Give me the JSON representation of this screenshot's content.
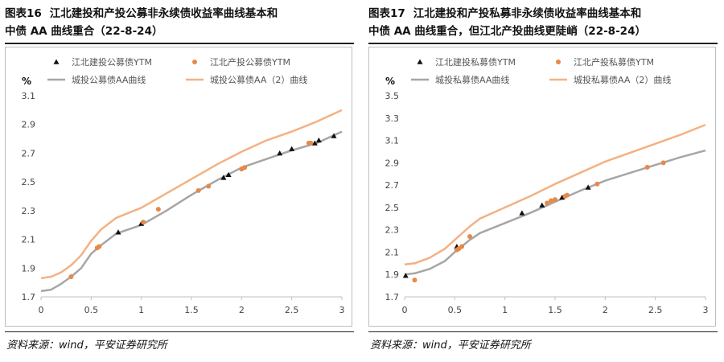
{
  "panels": [
    {
      "fig_num": "图表16",
      "title_line1": "江北建投和产投公募非永续债收益率曲线基本和",
      "title_line2": "中债 AA 曲线重合（22-8-24）",
      "source": "资料来源：wind，平安证券研究所"
    },
    {
      "fig_num": "图表17",
      "title_line1": "江北建投和产投私募非永续债收益率曲线基本和",
      "title_line2": "中债 AA 曲线重合，但江北产投曲线更陡峭（22-8-24）",
      "source": "资料来源：wind，平安证券研究所"
    }
  ],
  "colors": {
    "black": "#111111",
    "orange_marker": "#e7894a",
    "gray_line": "#a6a6a6",
    "orange_line": "#f4b183"
  },
  "chart_data": [
    {
      "type": "line",
      "ylabel": "%",
      "ylim": [
        1.7,
        3.1
      ],
      "yticks": [
        "1.7",
        "1.9",
        "2.1",
        "2.3",
        "2.5",
        "2.7",
        "2.9",
        "3.1"
      ],
      "xlim": [
        0,
        3
      ],
      "xticks": [
        "0",
        "0.5",
        "1",
        "1.5",
        "2",
        "2.5",
        "3"
      ],
      "legend_placement": "top",
      "series": [
        {
          "name": "江北建投公募债YTM",
          "kind": "scatter",
          "marker": "triangle",
          "color": "#111111",
          "points": [
            [
              0.77,
              2.15
            ],
            [
              1.0,
              2.21
            ],
            [
              1.82,
              2.53
            ],
            [
              1.87,
              2.55
            ],
            [
              2.38,
              2.7
            ],
            [
              2.5,
              2.73
            ],
            [
              2.73,
              2.77
            ],
            [
              2.77,
              2.79
            ],
            [
              2.92,
              2.82
            ]
          ]
        },
        {
          "name": "江北产投公募债YTM",
          "kind": "scatter",
          "marker": "circle",
          "color": "#e7894a",
          "points": [
            [
              0.3,
              1.84
            ],
            [
              0.56,
              2.04
            ],
            [
              0.58,
              2.05
            ],
            [
              1.02,
              2.22
            ],
            [
              1.17,
              2.31
            ],
            [
              1.57,
              2.44
            ],
            [
              1.67,
              2.47
            ],
            [
              2.0,
              2.59
            ],
            [
              2.03,
              2.6
            ],
            [
              2.67,
              2.77
            ],
            [
              2.69,
              2.77
            ]
          ]
        },
        {
          "name": "城投公募债AA曲线",
          "kind": "line",
          "color": "#a6a6a6",
          "points": [
            [
              0,
              1.74
            ],
            [
              0.1,
              1.75
            ],
            [
              0.2,
              1.79
            ],
            [
              0.3,
              1.84
            ],
            [
              0.4,
              1.9
            ],
            [
              0.5,
              2.0
            ],
            [
              0.6,
              2.06
            ],
            [
              0.75,
              2.14
            ],
            [
              1.0,
              2.2
            ],
            [
              1.25,
              2.3
            ],
            [
              1.5,
              2.41
            ],
            [
              1.75,
              2.51
            ],
            [
              2.0,
              2.6
            ],
            [
              2.25,
              2.66
            ],
            [
              2.5,
              2.72
            ],
            [
              2.75,
              2.77
            ],
            [
              3.0,
              2.85
            ]
          ]
        },
        {
          "name": "城投公募债AA（2）曲线",
          "kind": "line",
          "color": "#f4b183",
          "points": [
            [
              0,
              1.83
            ],
            [
              0.1,
              1.84
            ],
            [
              0.2,
              1.87
            ],
            [
              0.3,
              1.92
            ],
            [
              0.4,
              1.99
            ],
            [
              0.5,
              2.09
            ],
            [
              0.6,
              2.17
            ],
            [
              0.75,
              2.25
            ],
            [
              1.0,
              2.32
            ],
            [
              1.25,
              2.42
            ],
            [
              1.5,
              2.52
            ],
            [
              1.75,
              2.62
            ],
            [
              2.0,
              2.71
            ],
            [
              2.25,
              2.79
            ],
            [
              2.5,
              2.85
            ],
            [
              2.75,
              2.92
            ],
            [
              3.0,
              3.0
            ]
          ]
        }
      ]
    },
    {
      "type": "line",
      "ylabel": "%",
      "ylim": [
        1.7,
        3.5
      ],
      "yticks": [
        "1.7",
        "1.9",
        "2.1",
        "2.3",
        "2.5",
        "2.7",
        "2.9",
        "3.1",
        "3.3",
        "3.5"
      ],
      "xlim": [
        0,
        3
      ],
      "xticks": [
        "0",
        "0.5",
        "1",
        "1.5",
        "2",
        "2.5",
        "3"
      ],
      "legend_placement": "top",
      "series": [
        {
          "name": "江北建投私募债YTM",
          "kind": "scatter",
          "marker": "triangle",
          "color": "#111111",
          "points": [
            [
              0.01,
              1.89
            ],
            [
              0.52,
              2.15
            ],
            [
              1.17,
              2.45
            ],
            [
              1.37,
              2.52
            ],
            [
              1.57,
              2.59
            ],
            [
              1.83,
              2.68
            ]
          ]
        },
        {
          "name": "江北产投私募债YTM",
          "kind": "scatter",
          "marker": "circle",
          "color": "#e7894a",
          "points": [
            [
              0.1,
              1.85
            ],
            [
              0.52,
              2.12
            ],
            [
              0.54,
              2.13
            ],
            [
              0.57,
              2.15
            ],
            [
              0.65,
              2.24
            ],
            [
              1.42,
              2.54
            ],
            [
              1.46,
              2.56
            ],
            [
              1.5,
              2.57
            ],
            [
              1.6,
              2.6
            ],
            [
              1.62,
              2.61
            ],
            [
              1.92,
              2.71
            ],
            [
              2.42,
              2.86
            ],
            [
              2.58,
              2.9
            ]
          ]
        },
        {
          "name": "城投私募债AA曲线",
          "kind": "line",
          "color": "#a6a6a6",
          "points": [
            [
              0,
              1.9
            ],
            [
              0.1,
              1.91
            ],
            [
              0.25,
              1.95
            ],
            [
              0.4,
              2.02
            ],
            [
              0.5,
              2.1
            ],
            [
              0.65,
              2.21
            ],
            [
              0.75,
              2.27
            ],
            [
              1.0,
              2.36
            ],
            [
              1.25,
              2.45
            ],
            [
              1.5,
              2.55
            ],
            [
              1.75,
              2.65
            ],
            [
              2.0,
              2.74
            ],
            [
              2.25,
              2.81
            ],
            [
              2.5,
              2.88
            ],
            [
              2.75,
              2.95
            ],
            [
              3.0,
              3.01
            ]
          ]
        },
        {
          "name": "城投私募债AA（2）曲线",
          "kind": "line",
          "color": "#f4b183",
          "points": [
            [
              0,
              1.99
            ],
            [
              0.1,
              2.0
            ],
            [
              0.25,
              2.05
            ],
            [
              0.4,
              2.13
            ],
            [
              0.5,
              2.21
            ],
            [
              0.65,
              2.33
            ],
            [
              0.75,
              2.4
            ],
            [
              1.0,
              2.5
            ],
            [
              1.25,
              2.6
            ],
            [
              1.5,
              2.71
            ],
            [
              1.75,
              2.81
            ],
            [
              2.0,
              2.91
            ],
            [
              2.25,
              2.99
            ],
            [
              2.5,
              3.07
            ],
            [
              2.75,
              3.15
            ],
            [
              3.0,
              3.24
            ]
          ]
        }
      ]
    }
  ]
}
